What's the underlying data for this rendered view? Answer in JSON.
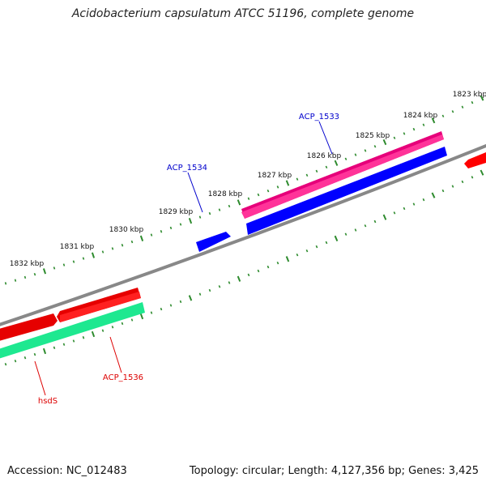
{
  "title": "Acidobacterium capsulatum ATCC 51196, complete genome",
  "footer": {
    "accession": "Accession: NC_012483",
    "summary": "Topology: circular; Length: 4,127,356 bp; Genes: 3,425"
  },
  "kbp_labels": [
    "1823 kbp",
    "1824 kbp",
    "1825 kbp",
    "1826 kbp",
    "1827 kbp",
    "1828 kbp",
    "1829 kbp",
    "1830 kbp",
    "1831 kbp",
    "1832 kbp"
  ],
  "gene_labels": [
    "ACP_1533",
    "ACP_1534",
    "ACP_1536",
    "hsdS"
  ],
  "colors": {
    "backbone": "#888888",
    "tick": "#2e8b2e",
    "forward_red": "#ff0000",
    "forward_pink": "#ff3399",
    "reverse_blue": "#0000ff",
    "reverse_green": "#33ff99",
    "label_blue": "#0000cc",
    "label_red": "#dd0000"
  }
}
